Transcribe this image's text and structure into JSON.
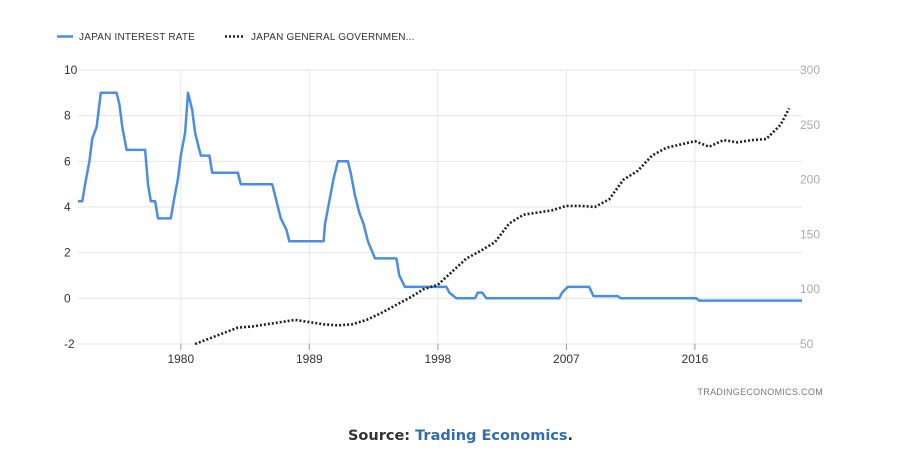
{
  "legend": {
    "series1_label": "JAPAN INTEREST RATE",
    "series2_label": "JAPAN GENERAL GOVERNMEN..."
  },
  "watermark": "TRADINGECONOMICS.COM",
  "caption": {
    "prefix": "Source: ",
    "link_text": "Trading Economics",
    "suffix": "."
  },
  "chart_data": {
    "type": "line",
    "xlim": [
      1972.8,
      2023.5
    ],
    "x_ticks": [
      1980,
      1989,
      1998,
      2007,
      2016
    ],
    "y_left": {
      "ylim": [
        -2,
        10
      ],
      "ticks": [
        -2,
        0,
        2,
        4,
        6,
        8,
        10
      ]
    },
    "y_right": {
      "ylim": [
        50,
        300
      ],
      "ticks": [
        50,
        100,
        150,
        200,
        250,
        300
      ]
    },
    "grid": true,
    "legend_position": "top-left",
    "series": [
      {
        "name": "JAPAN INTEREST RATE",
        "axis": "left",
        "color": "#4a8de6",
        "style": "solid",
        "points": [
          [
            1972.8,
            4.25
          ],
          [
            1973.1,
            4.25
          ],
          [
            1973.3,
            5.0
          ],
          [
            1973.6,
            6.0
          ],
          [
            1973.8,
            7.0
          ],
          [
            1974.1,
            7.5
          ],
          [
            1974.4,
            9.0
          ],
          [
            1975.5,
            9.0
          ],
          [
            1975.7,
            8.5
          ],
          [
            1975.9,
            7.5
          ],
          [
            1976.2,
            6.5
          ],
          [
            1977.5,
            6.5
          ],
          [
            1977.7,
            5.0
          ],
          [
            1977.9,
            4.25
          ],
          [
            1978.2,
            4.25
          ],
          [
            1978.4,
            3.5
          ],
          [
            1979.3,
            3.5
          ],
          [
            1979.5,
            4.25
          ],
          [
            1979.8,
            5.25
          ],
          [
            1980.0,
            6.25
          ],
          [
            1980.3,
            7.25
          ],
          [
            1980.5,
            9.0
          ],
          [
            1980.8,
            8.25
          ],
          [
            1981.0,
            7.25
          ],
          [
            1981.4,
            6.25
          ],
          [
            1982.0,
            6.25
          ],
          [
            1982.2,
            5.5
          ],
          [
            1984.0,
            5.5
          ],
          [
            1984.2,
            5.0
          ],
          [
            1986.4,
            5.0
          ],
          [
            1986.6,
            4.5
          ],
          [
            1986.8,
            4.0
          ],
          [
            1987.0,
            3.5
          ],
          [
            1987.4,
            3.0
          ],
          [
            1987.6,
            2.5
          ],
          [
            1990.0,
            2.5
          ],
          [
            1990.1,
            3.25
          ],
          [
            1990.4,
            4.25
          ],
          [
            1990.7,
            5.25
          ],
          [
            1991.0,
            6.0
          ],
          [
            1991.7,
            6.0
          ],
          [
            1991.9,
            5.5
          ],
          [
            1992.2,
            4.5
          ],
          [
            1992.5,
            3.75
          ],
          [
            1992.8,
            3.25
          ],
          [
            1993.1,
            2.5
          ],
          [
            1993.6,
            1.75
          ],
          [
            1995.1,
            1.75
          ],
          [
            1995.3,
            1.0
          ],
          [
            1995.7,
            0.5
          ],
          [
            1998.6,
            0.5
          ],
          [
            1998.8,
            0.25
          ],
          [
            1999.3,
            0.0
          ],
          [
            2000.6,
            0.0
          ],
          [
            2000.8,
            0.25
          ],
          [
            2001.1,
            0.25
          ],
          [
            2001.4,
            0.0
          ],
          [
            2006.5,
            0.0
          ],
          [
            2006.7,
            0.25
          ],
          [
            2007.1,
            0.5
          ],
          [
            2008.6,
            0.5
          ],
          [
            2008.9,
            0.1
          ],
          [
            2010.6,
            0.1
          ],
          [
            2010.8,
            0.0
          ],
          [
            2016.1,
            0.0
          ],
          [
            2016.3,
            -0.1
          ],
          [
            2023.5,
            -0.1
          ]
        ]
      },
      {
        "name": "JAPAN GENERAL GOVERNMEN...",
        "axis": "right",
        "color": "#222222",
        "style": "dotted",
        "points": [
          [
            1981,
            50
          ],
          [
            1982,
            55
          ],
          [
            1983,
            60
          ],
          [
            1984,
            65
          ],
          [
            1985,
            66
          ],
          [
            1986,
            68
          ],
          [
            1987,
            70
          ],
          [
            1988,
            72
          ],
          [
            1989,
            70
          ],
          [
            1990,
            68
          ],
          [
            1991,
            67
          ],
          [
            1992,
            68
          ],
          [
            1993,
            72
          ],
          [
            1994,
            78
          ],
          [
            1995,
            85
          ],
          [
            1996,
            92
          ],
          [
            1997,
            100
          ],
          [
            1998,
            104
          ],
          [
            1999,
            116
          ],
          [
            2000,
            128
          ],
          [
            2001,
            135
          ],
          [
            2002,
            143
          ],
          [
            2003,
            160
          ],
          [
            2004,
            168
          ],
          [
            2005,
            170
          ],
          [
            2006,
            172
          ],
          [
            2007,
            176
          ],
          [
            2008,
            176
          ],
          [
            2009,
            175
          ],
          [
            2010,
            182
          ],
          [
            2011,
            200
          ],
          [
            2012,
            208
          ],
          [
            2013,
            222
          ],
          [
            2014,
            229
          ],
          [
            2015,
            232
          ],
          [
            2016,
            235
          ],
          [
            2017,
            230
          ],
          [
            2018,
            236
          ],
          [
            2019,
            234
          ],
          [
            2020,
            236
          ],
          [
            2021,
            237
          ],
          [
            2022,
            250
          ],
          [
            2022.6,
            265
          ]
        ]
      }
    ]
  }
}
